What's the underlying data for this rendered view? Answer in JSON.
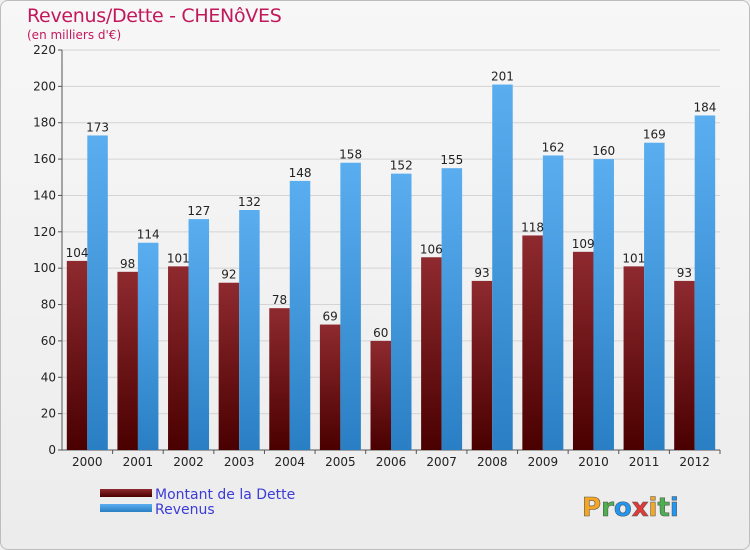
{
  "chart_data": {
    "type": "bar",
    "title": "Revenus/Dette - CHENôVES",
    "subtitle": "(en milliers d'€)",
    "categories": [
      "2000",
      "2001",
      "2002",
      "2003",
      "2004",
      "2005",
      "2006",
      "2007",
      "2008",
      "2009",
      "2010",
      "2011",
      "2012"
    ],
    "series": [
      {
        "name": "Montant de la Dette",
        "color": "#8b1a1a",
        "values": [
          104,
          98,
          101,
          92,
          78,
          69,
          60,
          106,
          93,
          118,
          109,
          101,
          93
        ]
      },
      {
        "name": "Revenus",
        "color": "#3d9be3",
        "values": [
          173,
          114,
          127,
          132,
          148,
          158,
          152,
          155,
          201,
          162,
          160,
          169,
          184
        ]
      }
    ],
    "ylim": [
      0,
      220
    ],
    "yticks": [
      0,
      20,
      40,
      60,
      80,
      100,
      120,
      140,
      160,
      180,
      200,
      220
    ],
    "grid": true,
    "legend_position": "bottom-left"
  },
  "logo": {
    "letters": [
      "P",
      "r",
      "o",
      "x",
      "i",
      "t",
      "i"
    ],
    "colors": [
      "#f5a623",
      "#4caf50",
      "#2196f3",
      "#e53935",
      "#f5a623",
      "#4caf50",
      "#2196f3"
    ]
  }
}
